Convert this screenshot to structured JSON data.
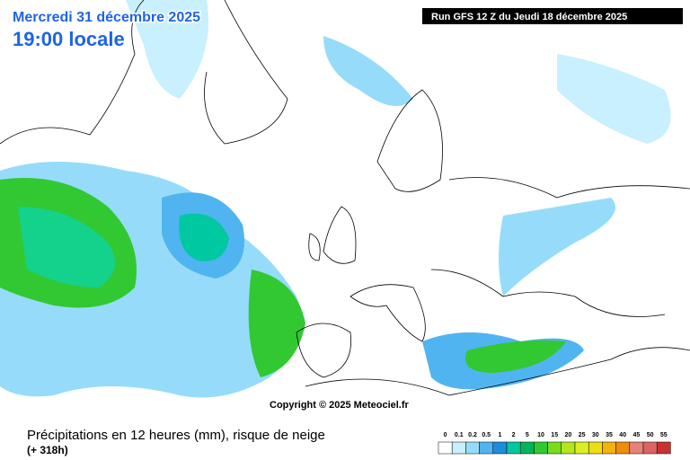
{
  "header": {
    "date": "Mercredi 31 décembre 2025",
    "time": "19:00 locale",
    "run": "Run GFS 12 Z du Jeudi 18 décembre 2025"
  },
  "copyright": "Copyright © 2025 Meteociel.fr",
  "footer": {
    "title": "Précipitations en 12 heures (mm), risque de neige",
    "lead": "(+ 318h)"
  },
  "legend": {
    "labels": [
      "0",
      "0.1",
      "0.2",
      "0.5",
      "1",
      "2",
      "5",
      "10",
      "15",
      "20",
      "25",
      "30",
      "35",
      "40",
      "45",
      "50",
      "55"
    ],
    "colors": [
      "#ffffff",
      "#c8f0ff",
      "#96dcfa",
      "#50b4f0",
      "#1e8cdc",
      "#00c8a0",
      "#00b45a",
      "#32c832",
      "#78dc1e",
      "#b4e61e",
      "#dcf01e",
      "#f0dc14",
      "#f0b40a",
      "#f08c0a",
      "#e68278",
      "#dc6464",
      "#c83232"
    ]
  }
}
